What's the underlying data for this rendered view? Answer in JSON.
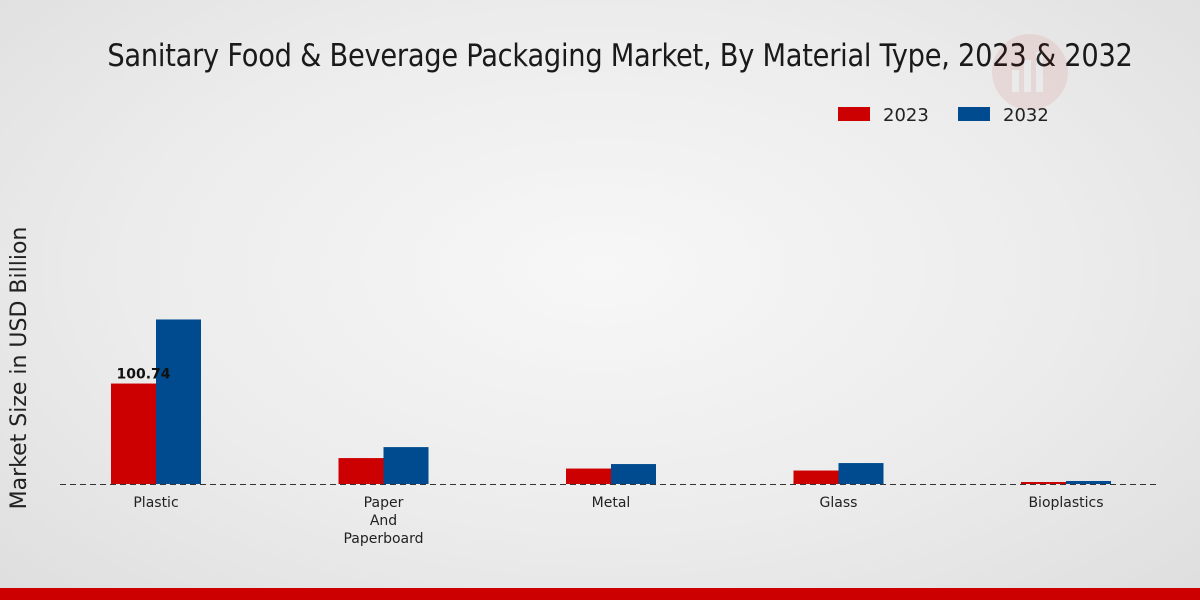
{
  "chart_data": {
    "type": "bar",
    "title": "Sanitary Food & Beverage Packaging Market, By Material Type, 2023 & 2032",
    "xlabel": "",
    "ylabel": "Market Size in USD Billion",
    "categories": [
      "Plastic",
      "Paper And Paperboard",
      "Metal",
      "Glass",
      "Bioplastics"
    ],
    "category_lines": [
      [
        "Plastic"
      ],
      [
        "Paper",
        "And",
        "Paperboard"
      ],
      [
        "Metal"
      ],
      [
        "Glass"
      ],
      [
        "Bioplastics"
      ]
    ],
    "series": [
      {
        "name": "2023",
        "color": "#cc0000",
        "values": [
          100.74,
          26.0,
          15.5,
          13.5,
          2.0
        ]
      },
      {
        "name": "2032",
        "color": "#004a8f",
        "values": [
          165.0,
          37.0,
          20.0,
          21.0,
          3.0
        ]
      }
    ],
    "data_labels": [
      {
        "series": 0,
        "category": 0,
        "text": "100.74"
      }
    ],
    "ylim": [
      0,
      350
    ],
    "grid": false,
    "legend": "top-right"
  }
}
